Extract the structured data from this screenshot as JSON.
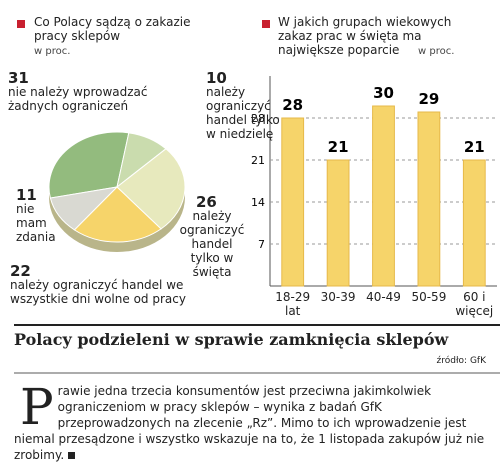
{
  "chart_data": [
    {
      "type": "pie",
      "title": "Co Polacy sądzą o zakazie pracy sklepów",
      "subtitle": "w proc.",
      "categories": [
        "nie należy wprowadzać żadnych ograniczeń",
        "należy ograniczyć handel tylko w niedzielę",
        "należy ograniczyć handel tylko w święta",
        "należy ograniczyć handel we wszystkie dni wolne od pracy",
        "nie mam zdania"
      ],
      "values": [
        31,
        10,
        26,
        22,
        11
      ],
      "colors": [
        "#93bb7e",
        "#cadcae",
        "#e7e9bd",
        "#f6d46a",
        "#d9d9d2"
      ]
    },
    {
      "type": "bar",
      "title": "W jakich grupach wiekowych zakaz prac w święta ma największe poparcie",
      "subtitle": "w proc.",
      "categories": [
        "18-29 lat",
        "30-39",
        "40-49",
        "50-59",
        "60 i więcej"
      ],
      "values": [
        28,
        21,
        30,
        29,
        21
      ],
      "color": "#f6d46a",
      "ylim": [
        0,
        35
      ],
      "yticks": [
        7,
        14,
        21,
        28
      ],
      "grid": true
    }
  ],
  "headline": "Polacy podzieleni w sprawie zamknięcia sklepów",
  "source": "źródło: GfK",
  "body": "Prawie jedna trzecia konsumentów jest przeciwna jakimkolwiek ograniczeniom w pracy sklepów – wynika z badań GfK przeprowadzonych na zlecenie „Rz”. Mimo to ich wprowadzenie jest niemal przesądzone i wszystko wskazuje na to, że 1 listopada zakupów już nie zrobimy."
}
